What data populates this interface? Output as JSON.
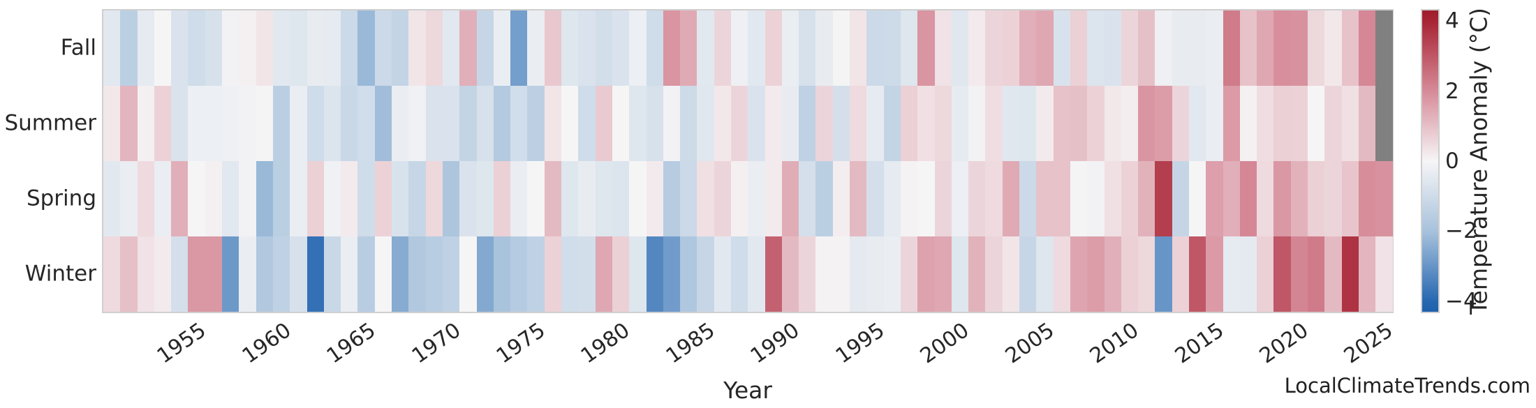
{
  "figure": {
    "xlabel": "Year",
    "watermark": "LocalClimateTrends.com",
    "text_color": "#262626",
    "border_color": "#cfcfcf"
  },
  "chart_data": {
    "type": "heatmap",
    "title": "",
    "xlabel": "Year",
    "ylabel": "",
    "legend_position": "right-colorbar",
    "grid": false,
    "rows": [
      "Fall",
      "Summer",
      "Spring",
      "Winter"
    ],
    "years": [
      1950,
      1951,
      1952,
      1953,
      1954,
      1955,
      1956,
      1957,
      1958,
      1959,
      1960,
      1961,
      1962,
      1963,
      1964,
      1965,
      1966,
      1967,
      1968,
      1969,
      1970,
      1971,
      1972,
      1973,
      1974,
      1975,
      1976,
      1977,
      1978,
      1979,
      1980,
      1981,
      1982,
      1983,
      1984,
      1985,
      1986,
      1987,
      1988,
      1989,
      1990,
      1991,
      1992,
      1993,
      1994,
      1995,
      1996,
      1997,
      1998,
      1999,
      2000,
      2001,
      2002,
      2003,
      2004,
      2005,
      2006,
      2007,
      2008,
      2009,
      2010,
      2011,
      2012,
      2013,
      2014,
      2015,
      2016,
      2017,
      2018,
      2019,
      2020,
      2021,
      2022,
      2023,
      2024,
      2025
    ],
    "xticks": [
      1955,
      1960,
      1965,
      1970,
      1975,
      1980,
      1985,
      1990,
      1995,
      2000,
      2005,
      2010,
      2015,
      2020,
      2025
    ],
    "series": [
      {
        "name": "Fall",
        "values": [
          -0.5,
          -1.5,
          -0.4,
          0.0,
          -0.7,
          -1.0,
          -0.8,
          -0.1,
          0.1,
          0.3,
          -0.5,
          -0.6,
          -0.35,
          -0.4,
          -1.1,
          -2.2,
          -1.1,
          -1.3,
          0.3,
          0.55,
          -0.5,
          1.3,
          -1.2,
          -0.3,
          -2.8,
          -0.3,
          0.85,
          -0.6,
          -0.7,
          -0.9,
          -0.7,
          -0.25,
          -1.0,
          1.8,
          1.4,
          -0.5,
          0.6,
          -0.2,
          -0.5,
          0.65,
          -0.3,
          -0.8,
          -0.35,
          -0.05,
          0.3,
          -1.1,
          -1.05,
          -0.6,
          1.8,
          0.35,
          -0.55,
          0.2,
          0.6,
          0.65,
          1.3,
          1.45,
          -0.75,
          0.7,
          -0.65,
          -0.7,
          0.6,
          1.0,
          -0.2,
          -0.35,
          -0.35,
          -0.3,
          2.3,
          0.95,
          1.45,
          1.9,
          1.85,
          0.55,
          0.25,
          0.95,
          2.05,
          null
        ]
      },
      {
        "name": "Summer",
        "values": [
          0.25,
          1.2,
          0.1,
          0.65,
          -0.7,
          -0.25,
          -0.25,
          -0.2,
          -0.1,
          -0.05,
          -1.5,
          -0.3,
          -1.0,
          -0.65,
          -1.15,
          -0.95,
          -2.1,
          -0.3,
          -0.15,
          -0.7,
          -0.7,
          -1.3,
          -0.8,
          -1.7,
          -0.95,
          -1.45,
          0.3,
          0.0,
          -1.0,
          0.8,
          0.0,
          -0.6,
          -0.8,
          -0.1,
          -1.05,
          -0.55,
          0.25,
          0.6,
          -0.7,
          0.2,
          -0.35,
          -1.4,
          0.6,
          -0.85,
          0.5,
          -0.4,
          -1.3,
          0.7,
          0.4,
          0.55,
          -0.4,
          -0.1,
          0.45,
          -0.55,
          -0.6,
          0.2,
          0.95,
          1.0,
          0.65,
          0.25,
          0.15,
          1.8,
          1.65,
          0.6,
          -0.5,
          -0.3,
          1.7,
          0.1,
          0.45,
          0.7,
          0.65,
          0.0,
          0.6,
          0.4,
          1.1,
          null
        ]
      },
      {
        "name": "Spring",
        "values": [
          -0.5,
          -0.3,
          0.5,
          -0.3,
          1.3,
          0.0,
          0.1,
          -0.5,
          -0.1,
          -2.2,
          -1.5,
          -0.3,
          0.7,
          -0.15,
          0.2,
          -1.0,
          0.65,
          -0.75,
          -1.2,
          0.55,
          -1.85,
          -0.7,
          -0.6,
          0.7,
          -0.3,
          0.0,
          1.1,
          -0.6,
          -0.35,
          -0.6,
          -0.65,
          0.0,
          0.2,
          -1.6,
          -1.1,
          0.4,
          0.6,
          0.1,
          -0.3,
          0.2,
          1.35,
          -0.85,
          -1.5,
          0.15,
          1.1,
          -0.85,
          -0.4,
          0.05,
          0.0,
          0.6,
          -0.25,
          0.6,
          0.5,
          1.4,
          -1.1,
          0.95,
          0.95,
          -0.05,
          -0.1,
          0.4,
          0.65,
          1.25,
          3.5,
          -1.25,
          0.0,
          1.6,
          1.3,
          2.05,
          0.5,
          1.75,
          1.25,
          0.7,
          0.6,
          0.9,
          1.95,
          1.85
        ]
      },
      {
        "name": "Winter",
        "values": [
          0.5,
          1.0,
          0.35,
          0.2,
          -0.85,
          1.75,
          1.75,
          -2.9,
          -0.3,
          -1.75,
          -1.4,
          -0.8,
          -3.8,
          -1.15,
          -0.3,
          -1.55,
          0.0,
          -2.5,
          -1.75,
          -1.55,
          -1.4,
          0.0,
          -2.55,
          -1.95,
          -1.65,
          -1.4,
          0.65,
          -0.95,
          -0.9,
          1.45,
          0.7,
          -0.6,
          -3.3,
          -2.85,
          -1.8,
          -1.2,
          -0.5,
          -1.0,
          -0.5,
          2.8,
          1.1,
          0.6,
          0.05,
          0.05,
          -0.45,
          -0.35,
          -0.3,
          0.6,
          1.55,
          1.45,
          -0.6,
          1.25,
          0.6,
          0.3,
          -1.2,
          -0.6,
          0.5,
          1.5,
          1.65,
          1.3,
          0.7,
          0.55,
          -3.0,
          0.65,
          3.0,
          1.7,
          -0.4,
          -0.45,
          0.7,
          3.0,
          2.1,
          2.3,
          1.1,
          3.7,
          1.2,
          0.35
        ]
      }
    ],
    "colorbar": {
      "label": "Temperature Anomaly (°C)",
      "ticks": [
        4,
        2,
        0,
        -2,
        -4
      ],
      "tick_labels": [
        "4",
        "2",
        "0",
        "−2",
        "−4"
      ],
      "range": [
        -4.3,
        4.3
      ]
    },
    "colormap": {
      "neg4": "#2767b1",
      "neg2": "#a7c2dc",
      "zero": "#f6f5f6",
      "pos2": "#d68a98",
      "pos4": "#a72434",
      "missing": "#808080"
    }
  }
}
